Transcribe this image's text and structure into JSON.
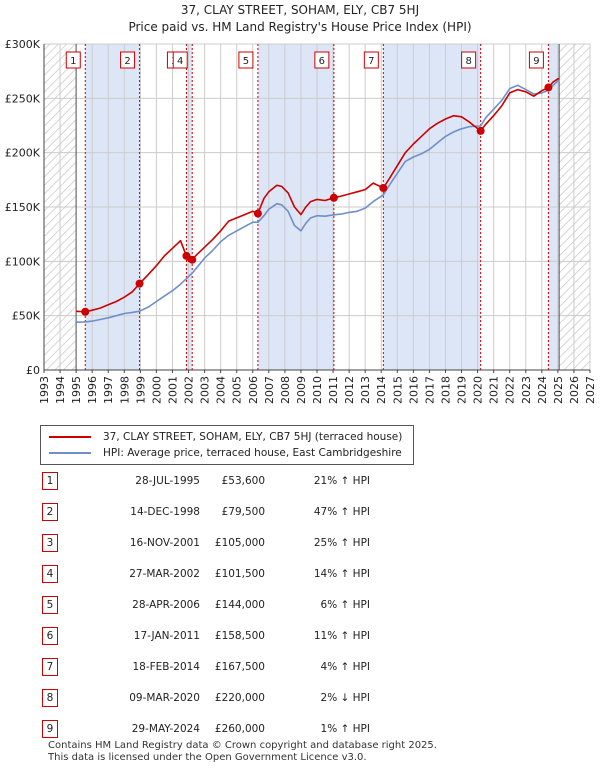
{
  "chart_data": {
    "type": "line",
    "title": "37, CLAY STREET, SOHAM, ELY, CB7 5HJ",
    "subtitle": "Price paid vs. HM Land Registry's House Price Index (HPI)",
    "xlim": [
      1993,
      2027
    ],
    "ylim": [
      0,
      300000
    ],
    "ytick_values": [
      0,
      50000,
      100000,
      150000,
      200000,
      250000,
      300000
    ],
    "ytick_labels": [
      "£0",
      "£50K",
      "£100K",
      "£150K",
      "£200K",
      "£250K",
      "£300K"
    ],
    "xtick_labels": [
      "1993",
      "1994",
      "1995",
      "1996",
      "1997",
      "1998",
      "1999",
      "2000",
      "2001",
      "2002",
      "2003",
      "2004",
      "2005",
      "2006",
      "2007",
      "2008",
      "2009",
      "2010",
      "2011",
      "2012",
      "2013",
      "2014",
      "2015",
      "2016",
      "2017",
      "2018",
      "2019",
      "2020",
      "2021",
      "2022",
      "2023",
      "2024",
      "2025",
      "2026",
      "2027"
    ],
    "hatched_regions": [
      [
        1993,
        1995.0
      ],
      [
        2025.08,
        2027
      ]
    ],
    "colors": {
      "property": "#cc0000",
      "hpi": "#6f8fc8",
      "shade": "#dde6f6",
      "grid": "#cccccc"
    },
    "series": [
      {
        "name": "37, CLAY STREET, SOHAM, ELY, CB7 5HJ (terraced house)",
        "color": "#cc0000",
        "x": [
          1995.0,
          1995.57,
          1996.0,
          1996.5,
          1997.0,
          1997.5,
          1998.0,
          1998.5,
          1998.95,
          1999.5,
          2000.0,
          2000.5,
          2001.0,
          2001.5,
          2001.87,
          2002.0,
          2002.23,
          2002.5,
          2003.0,
          2003.5,
          2004.0,
          2004.5,
          2005.0,
          2005.5,
          2006.0,
          2006.32,
          2006.7,
          2007.0,
          2007.5,
          2007.8,
          2008.2,
          2008.6,
          2009.0,
          2009.3,
          2009.6,
          2010.0,
          2010.5,
          2011.05,
          2011.5,
          2012.0,
          2012.5,
          2013.0,
          2013.5,
          2014.13,
          2014.5,
          2015.0,
          2015.5,
          2016.0,
          2016.5,
          2017.0,
          2017.5,
          2018.0,
          2018.5,
          2019.0,
          2019.5,
          2020.19,
          2020.5,
          2021.0,
          2021.5,
          2022.0,
          2022.5,
          2023.0,
          2023.5,
          2024.0,
          2024.41,
          2024.7,
          2025.0,
          2025.1
        ],
        "values": [
          54000,
          53600,
          55000,
          57000,
          60000,
          63000,
          67000,
          72000,
          79500,
          88000,
          96000,
          105000,
          112000,
          119000,
          105000,
          100000,
          101500,
          106000,
          113000,
          120000,
          128000,
          137000,
          140000,
          143000,
          146000,
          144000,
          158000,
          164000,
          170000,
          169000,
          163000,
          150000,
          143000,
          150000,
          155000,
          157000,
          156000,
          158500,
          160000,
          162000,
          164000,
          166000,
          172000,
          167500,
          176000,
          188000,
          200000,
          208000,
          215000,
          222000,
          227000,
          231000,
          234000,
          233000,
          228000,
          220000,
          226000,
          234000,
          243000,
          255000,
          258000,
          256000,
          252000,
          257000,
          260000,
          265000,
          268000,
          268000
        ]
      },
      {
        "name": "HPI: Average price, terraced house, East Cambridgeshire",
        "color": "#6f8fc8",
        "x": [
          1995.0,
          1995.57,
          1996.0,
          1996.5,
          1997.0,
          1997.5,
          1998.0,
          1998.5,
          1998.95,
          1999.5,
          2000.0,
          2000.5,
          2001.0,
          2001.5,
          2001.87,
          2002.0,
          2002.23,
          2002.5,
          2003.0,
          2003.5,
          2004.0,
          2004.5,
          2005.0,
          2005.5,
          2006.0,
          2006.32,
          2006.7,
          2007.0,
          2007.5,
          2007.8,
          2008.2,
          2008.6,
          2009.0,
          2009.3,
          2009.6,
          2010.0,
          2010.5,
          2011.05,
          2011.5,
          2012.0,
          2012.5,
          2013.0,
          2013.5,
          2014.13,
          2014.5,
          2015.0,
          2015.5,
          2016.0,
          2016.5,
          2017.0,
          2017.5,
          2018.0,
          2018.5,
          2019.0,
          2019.5,
          2020.19,
          2020.5,
          2021.0,
          2021.5,
          2022.0,
          2022.5,
          2023.0,
          2023.5,
          2024.0,
          2024.41,
          2024.7,
          2025.0,
          2025.1
        ],
        "values": [
          44000,
          44300,
          45000,
          46500,
          48000,
          50000,
          52000,
          53000,
          54100,
          58000,
          63000,
          68000,
          73000,
          79000,
          84000,
          86000,
          89000,
          94000,
          103000,
          110000,
          118000,
          124000,
          128000,
          132000,
          136000,
          136000,
          142000,
          148000,
          153000,
          152000,
          146000,
          133000,
          128000,
          135000,
          140000,
          142000,
          141500,
          142800,
          143500,
          145000,
          146000,
          149000,
          155000,
          161100,
          170000,
          181000,
          192000,
          196000,
          199000,
          203000,
          209000,
          215000,
          219000,
          222000,
          224000,
          224500,
          232000,
          240000,
          248000,
          259000,
          262000,
          258000,
          254000,
          255000,
          257400,
          262000,
          266000,
          266000
        ]
      }
    ],
    "sales": [
      {
        "id": "1",
        "year": 1995.57,
        "price": 53600
      },
      {
        "id": "2",
        "year": 1998.95,
        "price": 79500
      },
      {
        "id": "3",
        "year": 2001.87,
        "price": 105000
      },
      {
        "id": "4",
        "year": 2002.23,
        "price": 101500
      },
      {
        "id": "5",
        "year": 2006.32,
        "price": 144000
      },
      {
        "id": "6",
        "year": 2011.05,
        "price": 158500
      },
      {
        "id": "7",
        "year": 2014.13,
        "price": 167500
      },
      {
        "id": "8",
        "year": 2020.19,
        "price": 220000
      },
      {
        "id": "9",
        "year": 2024.41,
        "price": 260000
      }
    ],
    "shaded_bands": [
      [
        1995.57,
        1998.95
      ],
      [
        2001.87,
        2002.23
      ],
      [
        2006.32,
        2011.05
      ],
      [
        2014.13,
        2020.19
      ],
      [
        2024.41,
        2025.08
      ]
    ]
  },
  "legend": {
    "property_label": "37, CLAY STREET, SOHAM, ELY, CB7 5HJ (terraced house)",
    "hpi_label": "HPI: Average price, terraced house, East Cambridgeshire"
  },
  "table": [
    {
      "num": "1",
      "date": "28-JUL-1995",
      "price": "£53,600",
      "hpi": "21% ↑ HPI"
    },
    {
      "num": "2",
      "date": "14-DEC-1998",
      "price": "£79,500",
      "hpi": "47% ↑ HPI"
    },
    {
      "num": "3",
      "date": "16-NOV-2001",
      "price": "£105,000",
      "hpi": "25% ↑ HPI"
    },
    {
      "num": "4",
      "date": "27-MAR-2002",
      "price": "£101,500",
      "hpi": "14% ↑ HPI"
    },
    {
      "num": "5",
      "date": "28-APR-2006",
      "price": "£144,000",
      "hpi": "6% ↑ HPI"
    },
    {
      "num": "6",
      "date": "17-JAN-2011",
      "price": "£158,500",
      "hpi": "11% ↑ HPI"
    },
    {
      "num": "7",
      "date": "18-FEB-2014",
      "price": "£167,500",
      "hpi": "4% ↑ HPI"
    },
    {
      "num": "8",
      "date": "09-MAR-2020",
      "price": "£220,000",
      "hpi": "2% ↓ HPI"
    },
    {
      "num": "9",
      "date": "29-MAY-2024",
      "price": "£260,000",
      "hpi": "1% ↑ HPI"
    }
  ],
  "footer": {
    "line1": "Contains HM Land Registry data © Crown copyright and database right 2025.",
    "line2": "This data is licensed under the Open Government Licence v3.0."
  }
}
